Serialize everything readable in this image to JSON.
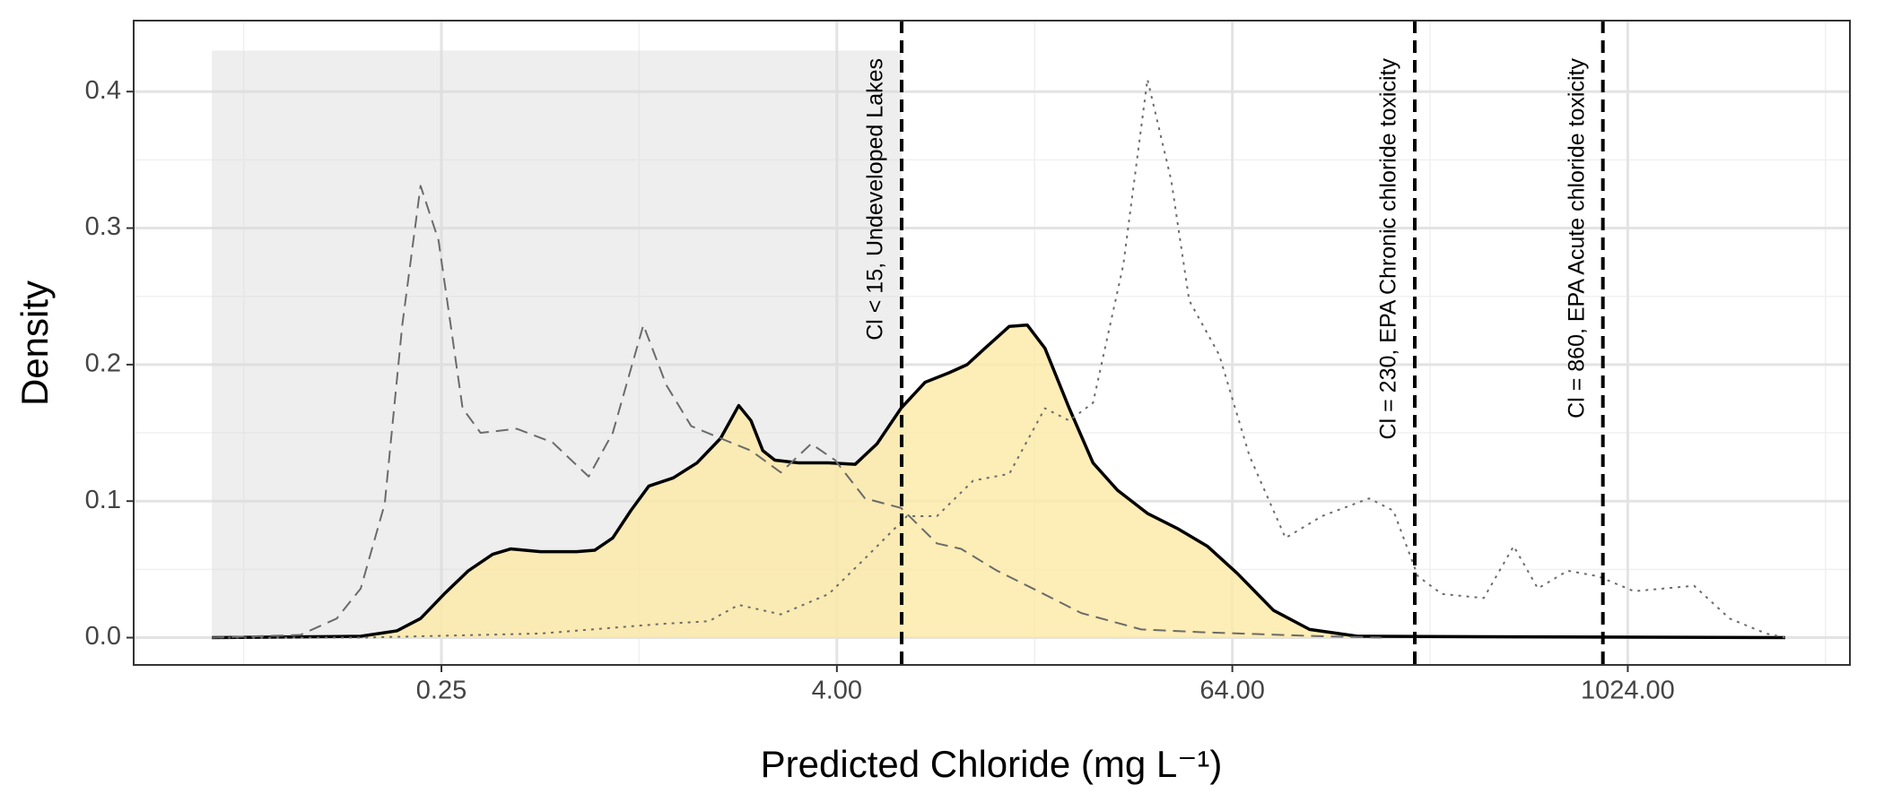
{
  "chart_data": {
    "type": "density",
    "x_label": "Predicted Chloride (mg L⁻¹)",
    "y_label": "Density",
    "log_x": true,
    "grid": true,
    "xlim": [
      0.0289,
      4860
    ],
    "ylim": [
      -0.02,
      0.452
    ],
    "xticks": [
      0.25,
      {
        "value": 4,
        "label": "4.00"
      },
      {
        "value": 64,
        "label": "64.00"
      },
      {
        "value": 1024,
        "label": "1024.00"
      }
    ],
    "yticks": [
      {
        "value": 0,
        "label": "0.0"
      },
      0.1,
      0.2,
      0.3,
      0.4
    ],
    "x_minor_grid": [
      0.0625,
      1,
      16,
      256,
      4096
    ],
    "y_minor_grid": [
      0.05,
      0.15,
      0.25,
      0.35
    ],
    "shaded_region": {
      "x": [
        0.05,
        6.3
      ],
      "y": [
        0,
        0.43
      ],
      "color": "#d9d9d9"
    },
    "vlines": [
      {
        "x": 6.3,
        "label": "Cl < 15, Undeveloped Lakes"
      },
      {
        "x": 230,
        "label": "Cl = 230, EPA Chronic chloride toxicity"
      },
      {
        "x": 860,
        "label": "Cl = 860, EPA Acute chloride toxicity"
      }
    ],
    "series": [
      {
        "color": "#000000",
        "fill": "#fce9a4",
        "linestyle": "solid",
        "x": [
          0.05,
          0.142,
          0.183,
          0.216,
          0.255,
          0.302,
          0.358,
          0.406,
          0.501,
          0.645,
          0.732,
          0.831,
          0.943,
          1.07,
          1.27,
          1.5,
          1.77,
          2.01,
          2.19,
          2.38,
          2.59,
          3.07,
          3.78,
          4.55,
          5.3,
          6.27,
          7.42,
          8.78,
          9.97,
          11.3,
          13.4,
          15.2,
          17.2,
          20.4,
          24.1,
          28.6,
          35.3,
          43.5,
          53.7,
          66.3,
          85.4,
          110,
          154,
          3090
        ],
        "values": [
          0,
          0.001,
          0.005,
          0.014,
          0.032,
          0.049,
          0.061,
          0.065,
          0.063,
          0.063,
          0.064,
          0.073,
          0.093,
          0.111,
          0.117,
          0.128,
          0.146,
          0.17,
          0.159,
          0.137,
          0.13,
          0.128,
          0.128,
          0.127,
          0.142,
          0.168,
          0.187,
          0.194,
          0.2,
          0.212,
          0.228,
          0.229,
          0.212,
          0.168,
          0.128,
          0.108,
          0.091,
          0.08,
          0.067,
          0.047,
          0.02,
          0.006,
          0.001,
          0
        ]
      },
      {
        "color": "#6b6b6b",
        "linestyle": "dashed",
        "x": [
          0.05,
          0.093,
          0.12,
          0.142,
          0.168,
          0.19,
          0.216,
          0.245,
          0.29,
          0.329,
          0.424,
          0.545,
          0.702,
          0.831,
          1.03,
          1.21,
          1.44,
          1.77,
          2.19,
          2.7,
          3.34,
          3.95,
          4.87,
          6.27,
          8.07,
          9.56,
          12.3,
          15.8,
          22.2,
          33.8,
          51.5,
          120,
          182
        ],
        "values": [
          0,
          0.002,
          0.014,
          0.036,
          0.098,
          0.229,
          0.331,
          0.291,
          0.168,
          0.15,
          0.153,
          0.143,
          0.118,
          0.15,
          0.229,
          0.185,
          0.155,
          0.146,
          0.137,
          0.121,
          0.142,
          0.13,
          0.102,
          0.095,
          0.069,
          0.065,
          0.049,
          0.036,
          0.018,
          0.006,
          0.004,
          0.001,
          0
        ]
      },
      {
        "color": "#6b6b6b",
        "linestyle": "dotted",
        "x": [
          0.05,
          0.142,
          0.216,
          0.501,
          1.16,
          1.63,
          2.01,
          2.7,
          3.78,
          4.87,
          6.54,
          8.07,
          10.4,
          13.4,
          17.2,
          20.4,
          24.1,
          29.8,
          35.3,
          41.7,
          47.3,
          58.4,
          72.2,
          92.9,
          120,
          167,
          198,
          235,
          278,
          373,
          460,
          545,
          672,
          830,
          1070,
          1630,
          2090,
          2700,
          3090
        ],
        "values": [
          0,
          0,
          0.001,
          0.003,
          0.01,
          0.012,
          0.024,
          0.017,
          0.032,
          0.058,
          0.089,
          0.089,
          0.115,
          0.12,
          0.168,
          0.159,
          0.172,
          0.273,
          0.409,
          0.335,
          0.247,
          0.207,
          0.133,
          0.073,
          0.089,
          0.102,
          0.093,
          0.045,
          0.032,
          0.029,
          0.067,
          0.036,
          0.049,
          0.045,
          0.034,
          0.038,
          0.014,
          0.003,
          0
        ]
      }
    ]
  }
}
